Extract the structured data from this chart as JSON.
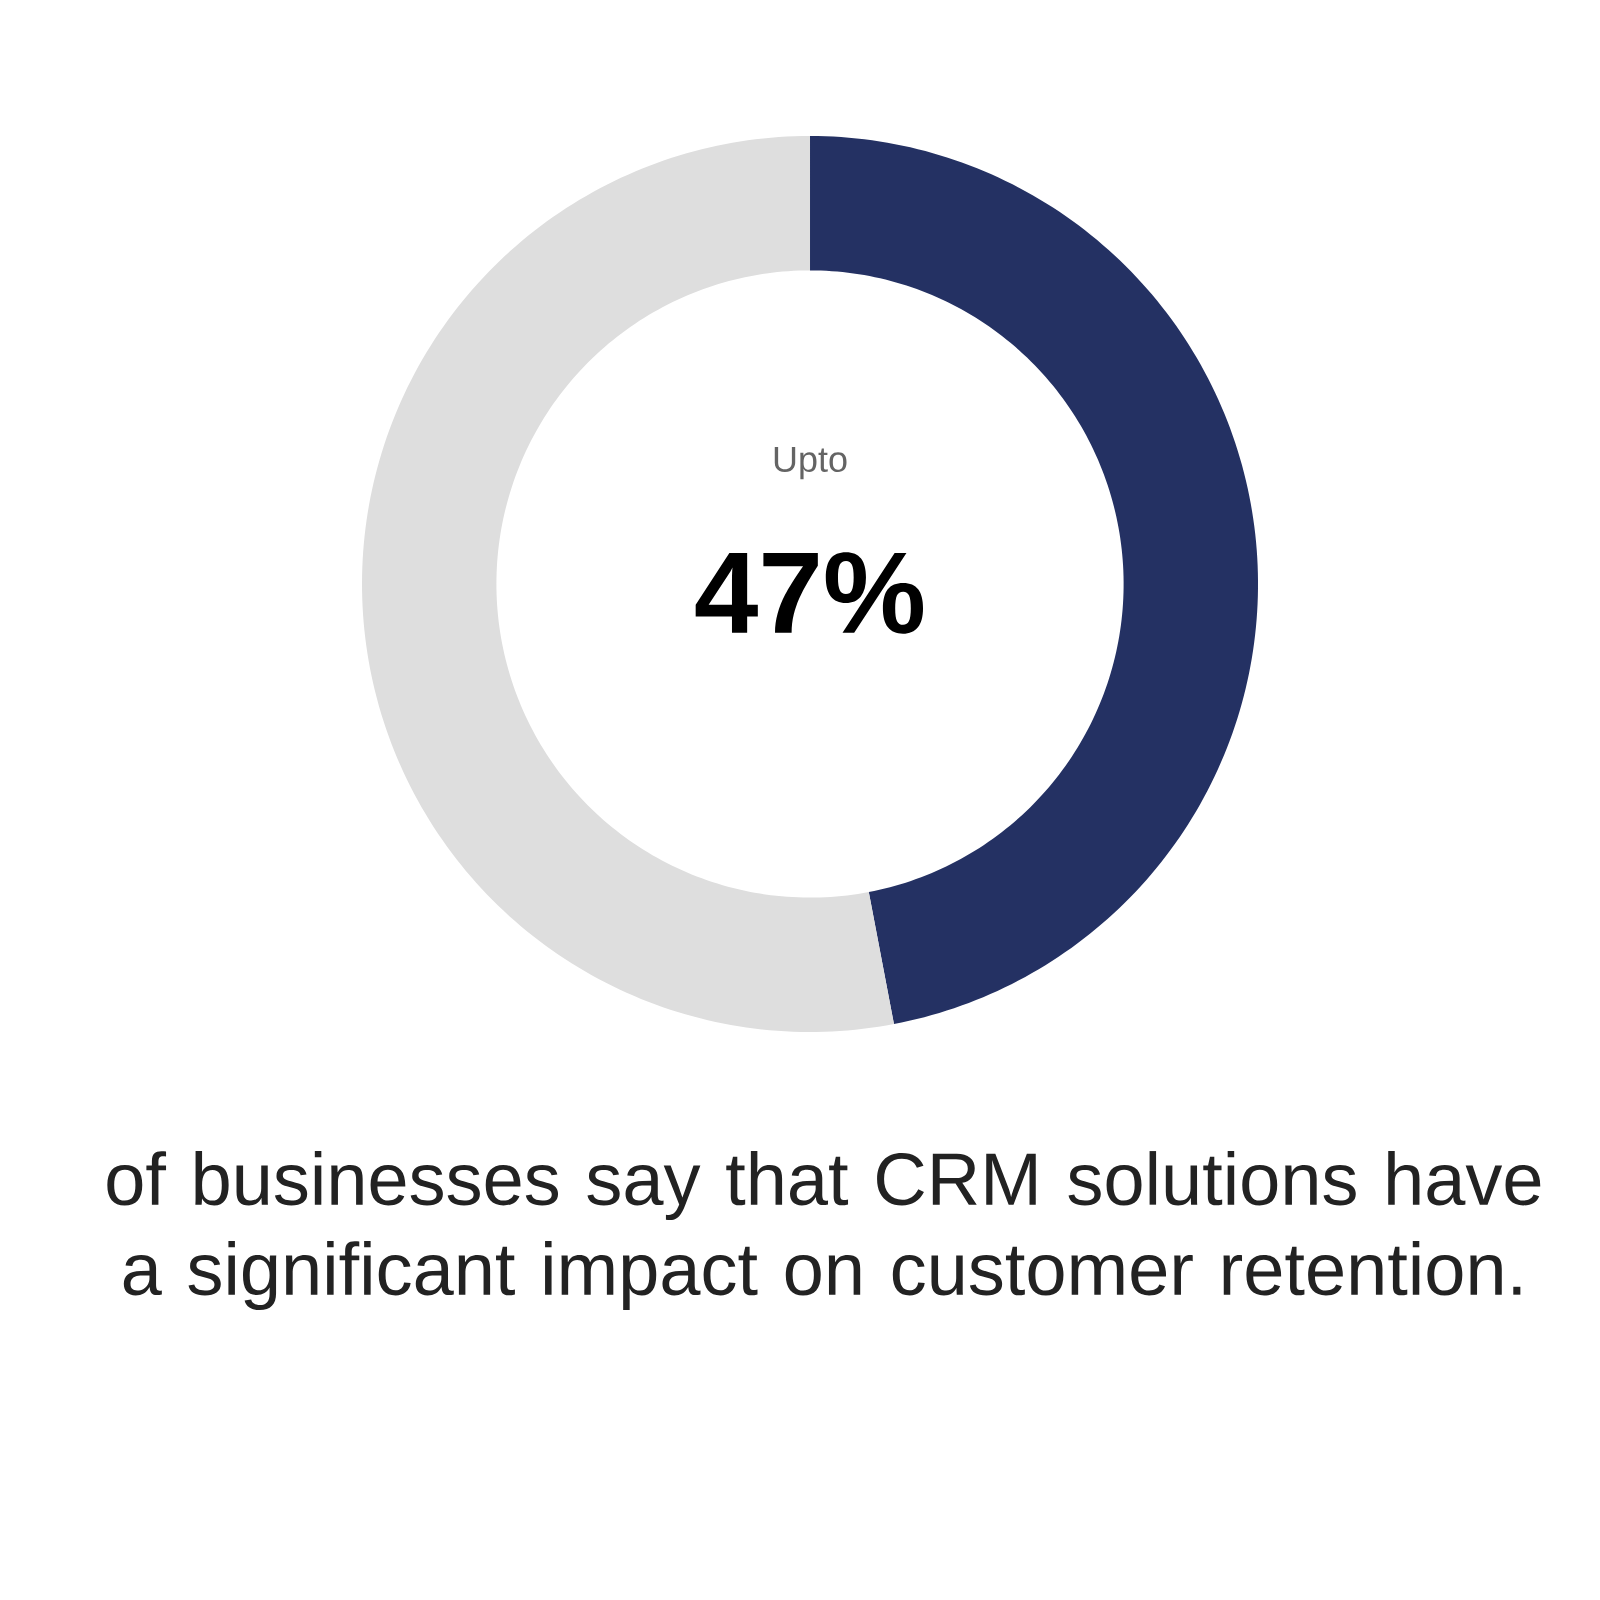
{
  "chart_data": {
    "type": "donut",
    "categories": [
      null,
      null
    ],
    "values": [
      47,
      53
    ],
    "colors": [
      "#243163",
      "#dedede"
    ],
    "annotations": [
      "Upto",
      "47%",
      "of businesses say that CRM solutions have a significant impact on customer retention."
    ]
  }
}
